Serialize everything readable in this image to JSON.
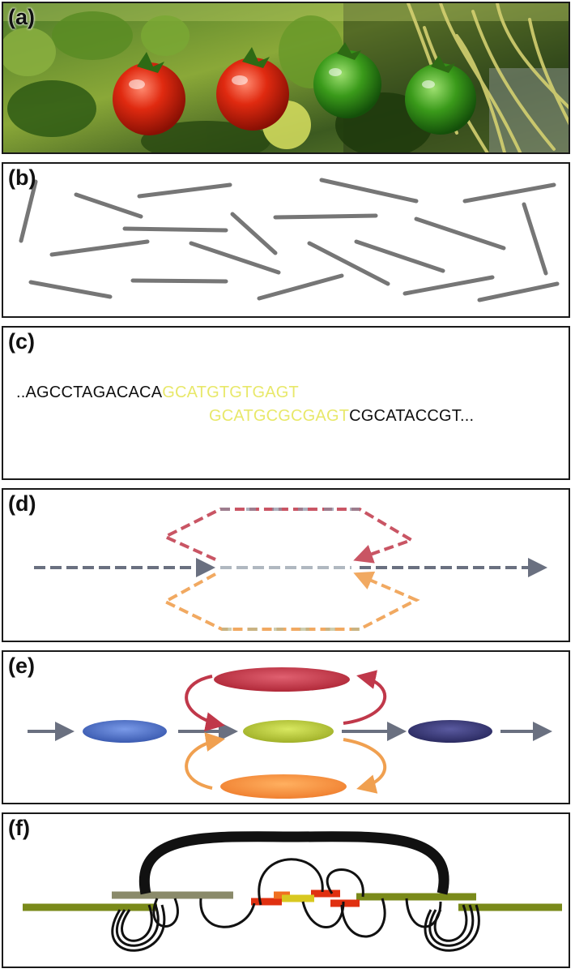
{
  "panels": [
    {
      "label": "(a)"
    },
    {
      "label": "(b)"
    },
    {
      "label": "(c)"
    },
    {
      "label": "(d)"
    },
    {
      "label": "(e)"
    },
    {
      "label": "(f)"
    }
  ],
  "sequence": {
    "top_black": "..AGCCTAGACACA",
    "top_yellow": "GCATGTGTGAGT",
    "bottom_yellow": "GCATGCGCGAGT",
    "bottom_black": "CGCATACCGT..."
  },
  "colors": {
    "read_gray": "#777777",
    "highlight_yellow": "#e8e86a",
    "red": "#c0384a",
    "orange": "#f0a050",
    "blue": "#4a70c8",
    "yellow_green": "#b8c838",
    "navy": "#3a3a7a",
    "olive": "#7a8a1a",
    "contig_red": "#e03010",
    "contig_orange": "#f07020"
  }
}
